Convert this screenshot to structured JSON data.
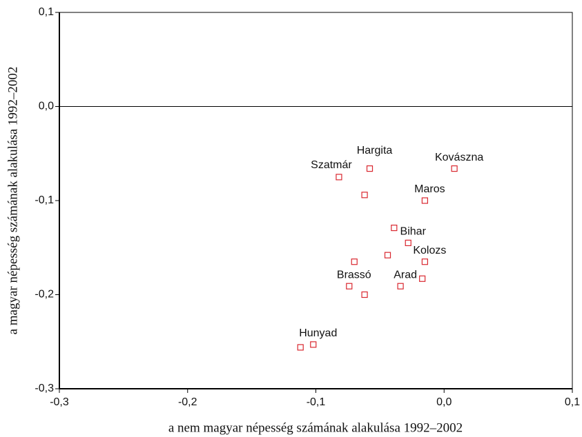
{
  "chart_data": {
    "type": "scatter",
    "x_label": "a nem magyar népesség számának alakulása  1992–2002",
    "y_label": "a magyar népesség számának alakulása  1992–2002",
    "color": "#d9262e",
    "x": [
      -0.058,
      -0.082,
      -0.062,
      0.008,
      -0.015,
      -0.039,
      -0.028,
      -0.044,
      -0.07,
      -0.015,
      -0.017,
      -0.034,
      -0.074,
      -0.062,
      -0.102,
      -0.112
    ],
    "values": [
      -0.066,
      -0.075,
      -0.094,
      -0.066,
      -0.1,
      -0.129,
      -0.145,
      -0.158,
      -0.165,
      -0.165,
      -0.183,
      -0.191,
      -0.191,
      -0.2,
      -0.253,
      -0.256
    ],
    "point_labels": [
      "Hargita",
      "Szatmár",
      null,
      "Kovászna",
      "Maros",
      null,
      "Bihar",
      null,
      null,
      "Kolozs",
      null,
      "Arad",
      "Brassó",
      null,
      "Hunyad",
      null
    ],
    "xlim": [
      -0.3,
      0.1
    ],
    "ylim": [
      -0.3,
      0.1
    ],
    "xticks": [
      {
        "value": -0.3,
        "label": "-0,3"
      },
      {
        "value": -0.2,
        "label": "-0,2"
      },
      {
        "value": -0.1,
        "label": "-0,1"
      },
      {
        "value": 0,
        "label": "0,0"
      },
      {
        "value": 0.1,
        "label": "0,1"
      }
    ],
    "yticks": [
      {
        "value": 0.1,
        "label": "0,1"
      },
      {
        "value": 0,
        "label": "0,0"
      },
      {
        "value": -0.1,
        "label": "-0,1"
      },
      {
        "value": -0.2,
        "label": "-0,2"
      },
      {
        "value": -0.3,
        "label": "-0,3"
      }
    ],
    "reference_line": 0
  }
}
